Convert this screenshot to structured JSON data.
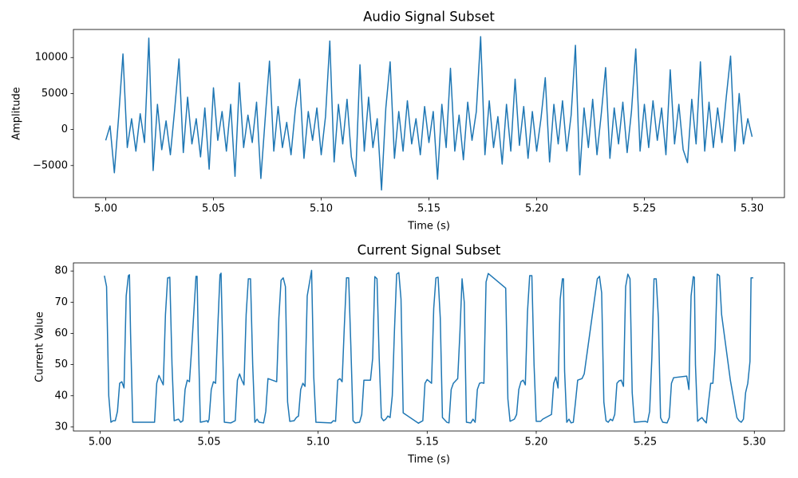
{
  "chart_data": [
    {
      "type": "line",
      "title": "Audio Signal Subset",
      "xlabel": "Time (s)",
      "ylabel": "Amplitude",
      "color": "#1f77b4",
      "xlim": [
        4.985,
        5.315
      ],
      "ylim": [
        -9450,
        13900
      ],
      "xticks": [
        {
          "value": 5,
          "label": "5.00"
        },
        5.05,
        {
          "value": 5.1,
          "label": "5.10"
        },
        5.15,
        {
          "value": 5.2,
          "label": "5.20"
        },
        5.25,
        {
          "value": 5.3,
          "label": "5.30"
        }
      ],
      "yticks": [
        {
          "value": -5000,
          "label": "−5000"
        },
        0,
        5000,
        10000
      ],
      "x": [
        5.0,
        5.002,
        5.004,
        5.006,
        5.008,
        5.01,
        5.012,
        5.014,
        5.016,
        5.018,
        5.02,
        5.022,
        5.024,
        5.026,
        5.028,
        5.03,
        5.032,
        5.034,
        5.036,
        5.038,
        5.04,
        5.042,
        5.044,
        5.046,
        5.048,
        5.05,
        5.052,
        5.054,
        5.056,
        5.058,
        5.06,
        5.062,
        5.064,
        5.066,
        5.068,
        5.07,
        5.072,
        5.074,
        5.076,
        5.078,
        5.08,
        5.082,
        5.084,
        5.086,
        5.088,
        5.09,
        5.092,
        5.094,
        5.096,
        5.098,
        5.1,
        5.102,
        5.104,
        5.106,
        5.108,
        5.11,
        5.112,
        5.114,
        5.116,
        5.118,
        5.12,
        5.122,
        5.124,
        5.126,
        5.128,
        5.13,
        5.132,
        5.134,
        5.136,
        5.138,
        5.14,
        5.142,
        5.144,
        5.146,
        5.148,
        5.15,
        5.152,
        5.154,
        5.156,
        5.158,
        5.16,
        5.162,
        5.164,
        5.166,
        5.168,
        5.17,
        5.172,
        5.174,
        5.176,
        5.178,
        5.18,
        5.182,
        5.184,
        5.186,
        5.188,
        5.19,
        5.192,
        5.194,
        5.196,
        5.198,
        5.2,
        5.202,
        5.204,
        5.206,
        5.208,
        5.21,
        5.212,
        5.214,
        5.216,
        5.218,
        5.22,
        5.222,
        5.224,
        5.226,
        5.228,
        5.23,
        5.232,
        5.234,
        5.236,
        5.238,
        5.24,
        5.242,
        5.244,
        5.246,
        5.248,
        5.25,
        5.252,
        5.254,
        5.256,
        5.258,
        5.26,
        5.262,
        5.264,
        5.266,
        5.268,
        5.27,
        5.272,
        5.274,
        5.276,
        5.278,
        5.28,
        5.282,
        5.284,
        5.286,
        5.288,
        5.29,
        5.292,
        5.294,
        5.296,
        5.298,
        5.3
      ],
      "values": [
        -1500,
        500,
        -6000,
        1800,
        10500,
        -2500,
        1500,
        -3000,
        2200,
        -1800,
        12700,
        -5700,
        3500,
        -2800,
        1200,
        -3500,
        2800,
        9800,
        -3200,
        4500,
        -2000,
        1500,
        -3800,
        3000,
        -5500,
        5800,
        -1500,
        2500,
        -3000,
        3500,
        -6500,
        6500,
        -2500,
        2000,
        -1800,
        3800,
        -6800,
        1500,
        9500,
        -3000,
        3200,
        -2500,
        1000,
        -3500,
        2800,
        7000,
        -4000,
        2500,
        -1500,
        3000,
        -3500,
        1800,
        12300,
        -4500,
        3500,
        -2000,
        4200,
        -3800,
        -6500,
        9000,
        -3000,
        4500,
        -2500,
        1500,
        -8400,
        3000,
        9400,
        -4000,
        2500,
        -3000,
        4000,
        -2000,
        1500,
        -3500,
        3200,
        -1800,
        2500,
        -6900,
        3500,
        -2500,
        8500,
        -3000,
        2000,
        -4200,
        3800,
        -1500,
        2500,
        12900,
        -3500,
        4000,
        -2500,
        1800,
        -4800,
        3500,
        -3000,
        7000,
        -2200,
        3200,
        -4000,
        2500,
        -3000,
        1500,
        7200,
        -4500,
        3500,
        -2000,
        4000,
        -3000,
        2000,
        11700,
        -6300,
        3000,
        -2500,
        4200,
        -3500,
        2200,
        8600,
        -4000,
        3000,
        -2000,
        3800,
        -3200,
        2500,
        11200,
        -3000,
        3500,
        -2500,
        4000,
        -1500,
        3000,
        -3500,
        8300,
        -2000,
        3500,
        -2800,
        -4600,
        4200,
        -2000,
        9400,
        -3000,
        3800,
        -2500,
        3000,
        -1800,
        4500,
        10200,
        -3000,
        5000,
        -2000,
        1500,
        -1000
      ]
    },
    {
      "type": "line",
      "title": "Current Signal Subset",
      "xlabel": "Time (s)",
      "ylabel": "Current Value",
      "color": "#1f77b4",
      "xlim": [
        4.9878,
        5.3138
      ],
      "ylim": [
        28.7,
        82.6
      ],
      "xticks": [
        {
          "value": 5,
          "label": "5.00"
        },
        5.05,
        {
          "value": 5.1,
          "label": "5.10"
        },
        5.15,
        {
          "value": 5.2,
          "label": "5.20"
        },
        5.25,
        {
          "value": 5.3,
          "label": "5.30"
        }
      ],
      "yticks": [
        30,
        40,
        50,
        60,
        70,
        80
      ],
      "x": [
        5.002,
        5.003,
        5.004,
        5.005,
        5.006,
        5.007,
        5.008,
        5.009,
        5.01,
        5.011,
        5.012,
        5.013,
        5.0135,
        5.014,
        5.015,
        5.025,
        5.026,
        5.027,
        5.028,
        5.029,
        5.03,
        5.031,
        5.032,
        5.033,
        5.034,
        5.036,
        5.037,
        5.038,
        5.039,
        5.04,
        5.041,
        5.042,
        5.044,
        5.0445,
        5.045,
        5.046,
        5.048,
        5.049,
        5.0495,
        5.05,
        5.051,
        5.052,
        5.053,
        5.054,
        5.055,
        5.0555,
        5.057,
        5.06,
        5.062,
        5.063,
        5.064,
        5.065,
        5.066,
        5.067,
        5.068,
        5.069,
        5.07,
        5.071,
        5.072,
        5.073,
        5.075,
        5.076,
        5.077,
        5.079,
        5.081,
        5.082,
        5.083,
        5.084,
        5.085,
        5.086,
        5.087,
        5.089,
        5.09,
        5.091,
        5.092,
        5.093,
        5.094,
        5.095,
        5.097,
        5.098,
        5.099,
        5.106,
        5.107,
        5.108,
        5.109,
        5.11,
        5.111,
        5.112,
        5.113,
        5.114,
        5.115,
        5.116,
        5.117,
        5.119,
        5.12,
        5.121,
        5.124,
        5.125,
        5.126,
        5.127,
        5.128,
        5.129,
        5.13,
        5.131,
        5.132,
        5.133,
        5.134,
        5.135,
        5.136,
        5.137,
        5.138,
        5.139,
        5.146,
        5.148,
        5.149,
        5.15,
        5.152,
        5.153,
        5.154,
        5.155,
        5.156,
        5.157,
        5.159,
        5.16,
        5.161,
        5.162,
        5.164,
        5.165,
        5.166,
        5.167,
        5.168,
        5.17,
        5.171,
        5.172,
        5.173,
        5.174,
        5.175,
        5.176,
        5.177,
        5.178,
        5.186,
        5.187,
        5.188,
        5.19,
        5.191,
        5.192,
        5.193,
        5.194,
        5.195,
        5.196,
        5.197,
        5.198,
        5.199,
        5.2,
        5.202,
        5.203,
        5.207,
        5.208,
        5.209,
        5.21,
        5.211,
        5.212,
        5.2125,
        5.213,
        5.214,
        5.215,
        5.216,
        5.217,
        5.218,
        5.219,
        5.221,
        5.222,
        5.228,
        5.229,
        5.23,
        5.231,
        5.232,
        5.233,
        5.234,
        5.235,
        5.236,
        5.237,
        5.238,
        5.239,
        5.24,
        5.241,
        5.242,
        5.243,
        5.244,
        5.245,
        5.25,
        5.251,
        5.252,
        5.253,
        5.254,
        5.255,
        5.256,
        5.257,
        5.258,
        5.26,
        5.261,
        5.262,
        5.263,
        5.269,
        5.27,
        5.271,
        5.272,
        5.2725,
        5.273,
        5.274,
        5.275,
        5.276,
        5.277,
        5.278,
        5.279,
        5.28,
        5.281,
        5.282,
        5.283,
        5.284,
        5.285,
        5.289,
        5.292,
        5.293,
        5.294,
        5.295,
        5.296,
        5.297,
        5.298,
        5.2985,
        5.2995
      ],
      "values": [
        78.5,
        75,
        40,
        31.5,
        32,
        32,
        35,
        44,
        44.5,
        42.5,
        72,
        78.5,
        78.8,
        60,
        31.5,
        31.5,
        44,
        46.5,
        45,
        43.5,
        66,
        77.8,
        78,
        50,
        32,
        32.5,
        31.5,
        32,
        42,
        45,
        44.5,
        55,
        78.3,
        78.3,
        60,
        31.5,
        31.8,
        32,
        31.5,
        32.5,
        42,
        44.5,
        44,
        62,
        78.8,
        79.3,
        31.5,
        31.3,
        32,
        45,
        47,
        45,
        43.5,
        66,
        77.5,
        77.5,
        50,
        31.5,
        32.5,
        31.5,
        31.3,
        35,
        45.5,
        45,
        44.5,
        65,
        77,
        77.8,
        75,
        38,
        31.8,
        32,
        33,
        33.5,
        42,
        44,
        43,
        72,
        80.2,
        46,
        31.5,
        31.3,
        32,
        31.8,
        45,
        45.5,
        44.5,
        62,
        77.8,
        77.8,
        56,
        32,
        31.3,
        31.5,
        34,
        45,
        45,
        52,
        78.2,
        77.5,
        52,
        33,
        32,
        32.5,
        33.5,
        33,
        40,
        61,
        79,
        79.5,
        71,
        34.5,
        31.2,
        32,
        44,
        45.2,
        44,
        68,
        77.8,
        78,
        65,
        33,
        31.5,
        31.3,
        42,
        44,
        45.5,
        60,
        77.5,
        70,
        31.5,
        31.3,
        32.5,
        31.5,
        42,
        44,
        44.2,
        44,
        76.5,
        79.2,
        74.5,
        39,
        31.8,
        32.5,
        34,
        42,
        44.5,
        45,
        43.5,
        67,
        78.5,
        78.5,
        50,
        31.8,
        31.8,
        32.5,
        34,
        44,
        46,
        42.5,
        71,
        77.5,
        77.5,
        48,
        31.5,
        32.5,
        31.3,
        31.5,
        38,
        45,
        45.5,
        47,
        77.5,
        78.3,
        73,
        38,
        32,
        31.5,
        32.5,
        32,
        34,
        44,
        44.8,
        45,
        43,
        75,
        79,
        77.5,
        41,
        31.5,
        31.8,
        31.5,
        35,
        52,
        77.5,
        77.5,
        65,
        33,
        31.5,
        31.3,
        33,
        44,
        45.8,
        46.3,
        42,
        72,
        78.2,
        78,
        50,
        31.8,
        32.5,
        33,
        32,
        31.3,
        38,
        44,
        44,
        55,
        79,
        78.5,
        66,
        45,
        33,
        32,
        31.5,
        32.5,
        41,
        44,
        51,
        77.8,
        77.8
      ]
    }
  ]
}
